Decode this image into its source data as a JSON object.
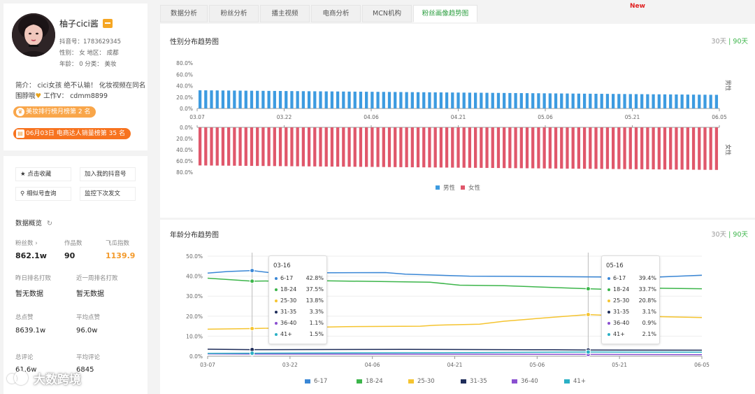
{
  "colors": {
    "male": "#3d9be0",
    "female": "#e0576b",
    "accent": "#3cb54a",
    "orange": "#f39a2b"
  },
  "profile": {
    "name": "柚子cici酱",
    "douyin_id_line": "抖音号：1783629345",
    "gender_region_line": "性别：  女    地区：  成都",
    "age_category_line": "年龄：  0    分类：  美妆",
    "intro_line1": "简介：  cici女孩 绝不认输！ 化妆视频在同名",
    "intro_line2_a": "围脖哦",
    "intro_line2_b": " 工作V：  cdmm8899",
    "rank_badges": [
      {
        "icon": "crown-icon",
        "text": "美妆排行榜月榜第 2 名"
      },
      {
        "icon": "calendar-icon",
        "text": "06月03日 电商达人销量榜第 35 名"
      }
    ]
  },
  "actions": {
    "favorite": "点击收藏",
    "add_to_my": "加入我的抖音号",
    "similar": "相似号查询",
    "monitor": "监控下次发文"
  },
  "overview": {
    "title": "数据概览",
    "fans_label": "粉丝数",
    "fans_value": "862.1w",
    "works_label": "作品数",
    "works_value": "90",
    "feigua_label": "飞瓜指数",
    "feigua_value": "1139.9",
    "yesterday_rank_label": "昨日排名打败",
    "yesterday_rank_value": "暂无数据",
    "week_rank_label": "近一周排名打败",
    "week_rank_value": "暂无数据",
    "total_likes_label": "总点赞",
    "total_likes_value": "8639.1w",
    "avg_likes_label": "平均点赞",
    "avg_likes_value": "96.0w",
    "total_comments_label": "总评论",
    "total_comments_value": "61.6w",
    "avg_comments_label": "平均评论",
    "avg_comments_value": "6845"
  },
  "watermark": "大数跨境",
  "tabs": [
    {
      "label": "数据分析",
      "active": false
    },
    {
      "label": "粉丝分析",
      "active": false
    },
    {
      "label": "播主视频",
      "active": false
    },
    {
      "label": "电商分析",
      "active": false
    },
    {
      "label": "MCN机构",
      "active": false
    },
    {
      "label": "粉丝画像趋势图",
      "active": true
    }
  ],
  "tab_new_badge": "New",
  "gender_panel": {
    "title": "性别分布趋势图",
    "range_30": "30天",
    "range_sep": "|",
    "range_90": "90天",
    "male_axis_name": "男性",
    "female_axis_name": "女性",
    "legend_male": "男性",
    "legend_female": "女性"
  },
  "age_panel": {
    "title": "年龄分布趋势图",
    "range_30": "30天",
    "range_sep": "|",
    "range_90": "90天",
    "legend": [
      "6-17",
      "18-24",
      "25-30",
      "31-35",
      "36-40",
      "41+"
    ]
  },
  "tooltips": [
    {
      "date": "03-16",
      "rows": [
        {
          "name": "6-17",
          "value": "42.8%"
        },
        {
          "name": "18-24",
          "value": "37.5%"
        },
        {
          "name": "25-30",
          "value": "13.8%"
        },
        {
          "name": "31-35",
          "value": "3.3%"
        },
        {
          "name": "36-40",
          "value": "1.1%"
        },
        {
          "name": "41+",
          "value": "1.5%"
        }
      ]
    },
    {
      "date": "05-16",
      "rows": [
        {
          "name": "6-17",
          "value": "39.4%"
        },
        {
          "name": "18-24",
          "value": "33.7%"
        },
        {
          "name": "25-30",
          "value": "20.8%"
        },
        {
          "name": "31-35",
          "value": "3.1%"
        },
        {
          "name": "36-40",
          "value": "0.9%"
        },
        {
          "name": "41+",
          "value": "2.1%"
        }
      ]
    }
  ],
  "chart_data": [
    {
      "type": "bar",
      "title": "性别分布趋势图",
      "x_ticks": [
        "03.07",
        "03.22",
        "04.06",
        "04.21",
        "05.06",
        "05.21",
        "06.05"
      ],
      "male_ylim": [
        0,
        80
      ],
      "male_ticks": [
        "80.0%",
        "60.0%",
        "40.0%",
        "20.0%",
        "0.0%"
      ],
      "female_ylim": [
        0,
        80
      ],
      "female_ticks": [
        "0.0%",
        "20.0%",
        "40.0%",
        "60.0%",
        "80.0%"
      ],
      "series": [
        {
          "name": "男性",
          "value_start": 32,
          "value_end": 24
        },
        {
          "name": "女性",
          "value_start": 68,
          "value_end": 76
        }
      ],
      "bar_count": 91,
      "legend": "bottom-center"
    },
    {
      "type": "line",
      "title": "年龄分布趋势图",
      "x_ticks": [
        "03-07",
        "03-22",
        "04-06",
        "04-21",
        "05-06",
        "05-21",
        "06-05"
      ],
      "y_ticks": [
        "50.0%",
        "40.0%",
        "30.0%",
        "20.0%",
        "10.0%",
        "0.0%"
      ],
      "ylim": [
        0,
        50
      ],
      "series": [
        {
          "name": "6-17",
          "color": "#3a87d6",
          "points": [
            [
              0,
              41.5
            ],
            [
              4,
              42.3
            ],
            [
              9,
              42.8
            ],
            [
              15,
              41.0
            ],
            [
              16,
              41.6
            ],
            [
              36,
              41.8
            ],
            [
              40,
              41.0
            ],
            [
              53,
              40.0
            ],
            [
              62,
              39.9
            ],
            [
              90,
              39.4
            ],
            [
              100,
              40.5
            ]
          ]
        },
        {
          "name": "18-24",
          "color": "#3cb54a",
          "points": [
            [
              0,
              39
            ],
            [
              9,
              37.5
            ],
            [
              20,
              37.8
            ],
            [
              45,
              37.0
            ],
            [
              51,
              35.5
            ],
            [
              60,
              35.2
            ],
            [
              77,
              33.7
            ],
            [
              81,
              33.4
            ],
            [
              90,
              34.0
            ],
            [
              100,
              33.7
            ]
          ]
        },
        {
          "name": "25-30",
          "color": "#f5c430",
          "points": [
            [
              0,
              13.5
            ],
            [
              9,
              13.8
            ],
            [
              28,
              14.8
            ],
            [
              43,
              15.0
            ],
            [
              46,
              15.5
            ],
            [
              55,
              16.0
            ],
            [
              60,
              17.5
            ],
            [
              70,
              19.5
            ],
            [
              77,
              20.8
            ],
            [
              83,
              20.2
            ],
            [
              100,
              19.3
            ]
          ]
        },
        {
          "name": "31-35",
          "color": "#1f2d5a",
          "points": [
            [
              0,
              3.5
            ],
            [
              9,
              3.3
            ],
            [
              40,
              3.4
            ],
            [
              70,
              3.2
            ],
            [
              77,
              3.1
            ],
            [
              100,
              3.0
            ]
          ]
        },
        {
          "name": "36-40",
          "color": "#8a4fd0",
          "points": [
            [
              0,
              1.2
            ],
            [
              9,
              1.1
            ],
            [
              50,
              1.0
            ],
            [
              77,
              0.9
            ],
            [
              100,
              0.8
            ]
          ]
        },
        {
          "name": "41+",
          "color": "#2ab0c5",
          "points": [
            [
              0,
              1.4
            ],
            [
              9,
              1.5
            ],
            [
              50,
              1.8
            ],
            [
              77,
              2.1
            ],
            [
              100,
              2.0
            ]
          ]
        }
      ],
      "legend": "bottom-center"
    }
  ]
}
